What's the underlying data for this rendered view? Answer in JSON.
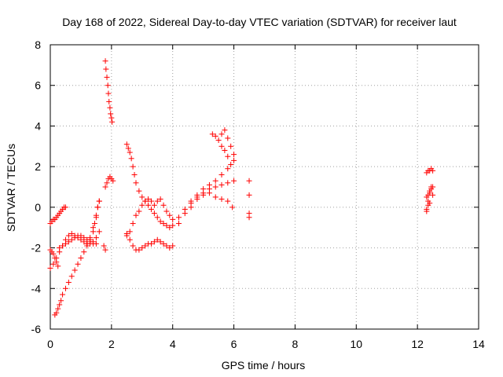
{
  "chart_data": {
    "type": "scatter",
    "title": "Day 168 of 2022, Sidereal Day-to-day VTEC variation (SDTVAR) for receiver laut",
    "xlabel": "GPS time / hours",
    "ylabel": "SDTVAR / TECUs",
    "xlim": [
      0,
      14
    ],
    "ylim": [
      -6,
      8
    ],
    "xticks": [
      "0",
      "2",
      "4",
      "6",
      "8",
      "10",
      "12",
      "14"
    ],
    "yticks": [
      "-6",
      "-4",
      "-2",
      "0",
      "2",
      "4",
      "6",
      "8"
    ],
    "grid": true,
    "marker": "+",
    "color": "#ff0000",
    "series": [
      {
        "name": "SDTVAR",
        "x": [
          0.0,
          0.05,
          0.1,
          0.15,
          0.2,
          0.25,
          0.3,
          0.35,
          0.4,
          0.45,
          0.5,
          0.0,
          0.05,
          0.1,
          0.15,
          0.2,
          0.25,
          0.15,
          0.2,
          0.25,
          0.3,
          0.35,
          0.4,
          0.5,
          0.6,
          0.7,
          0.8,
          0.9,
          1.0,
          1.1,
          1.2,
          1.3,
          1.4,
          1.45,
          1.5,
          1.55,
          1.6,
          0.0,
          0.1,
          0.2,
          0.3,
          0.4,
          0.5,
          0.6,
          0.7,
          0.8,
          0.9,
          1.0,
          1.1,
          1.2,
          1.3,
          1.4,
          1.5,
          1.6,
          0.3,
          0.4,
          0.5,
          0.6,
          0.7,
          0.8,
          0.9,
          1.0,
          1.1,
          1.2,
          1.3,
          1.4,
          1.5,
          1.2,
          1.3,
          1.4,
          1.5,
          1.55,
          1.6,
          1.8,
          1.82,
          1.85,
          1.88,
          1.9,
          1.92,
          1.95,
          1.97,
          2.0,
          2.02,
          1.8,
          1.85,
          1.9,
          1.95,
          2.0,
          2.05,
          1.75,
          1.8,
          2.5,
          2.55,
          2.6,
          2.65,
          2.7,
          2.75,
          2.8,
          2.9,
          3.0,
          3.1,
          3.2,
          3.3,
          3.4,
          3.5,
          3.6,
          3.7,
          3.8,
          3.9,
          2.5,
          2.6,
          2.7,
          2.8,
          2.9,
          3.0,
          3.1,
          3.2,
          3.3,
          3.4,
          3.5,
          3.6,
          3.7,
          3.8,
          3.9,
          4.0,
          2.5,
          2.6,
          2.7,
          2.8,
          2.9,
          3.0,
          3.1,
          3.2,
          3.3,
          3.4,
          3.5,
          3.6,
          3.7,
          3.8,
          3.9,
          4.0,
          4.0,
          4.2,
          4.4,
          4.6,
          4.8,
          5.0,
          5.2,
          5.4,
          5.6,
          5.8,
          6.0,
          4.2,
          4.4,
          4.6,
          4.8,
          5.0,
          5.2,
          5.4,
          5.6,
          5.8,
          6.0,
          4.6,
          4.8,
          5.0,
          5.2,
          5.4,
          5.6,
          5.8,
          5.95,
          5.3,
          5.4,
          5.5,
          5.6,
          5.7,
          5.8,
          5.9,
          6.0,
          5.6,
          5.7,
          5.8,
          5.9,
          6.5,
          6.5,
          6.5,
          6.5,
          12.3,
          12.35,
          12.4,
          12.45,
          12.5,
          12.3,
          12.35,
          12.4,
          12.45,
          12.5,
          12.3,
          12.35,
          12.4,
          12.45,
          12.5,
          12.3,
          12.35,
          12.4
        ],
        "y": [
          -0.8,
          -0.7,
          -0.6,
          -0.6,
          -0.5,
          -0.4,
          -0.3,
          -0.2,
          -0.1,
          0.0,
          0.0,
          -2.1,
          -2.2,
          -2.3,
          -2.5,
          -2.7,
          -2.9,
          -5.3,
          -5.2,
          -5.0,
          -4.8,
          -4.6,
          -4.3,
          -4.0,
          -3.7,
          -3.4,
          -3.1,
          -2.8,
          -2.5,
          -2.2,
          -1.9,
          -1.6,
          -1.2,
          -0.8,
          -0.4,
          0.0,
          0.3,
          -3.0,
          -2.8,
          -2.5,
          -2.2,
          -1.9,
          -1.6,
          -1.4,
          -1.3,
          -1.4,
          -1.5,
          -1.6,
          -1.7,
          -1.8,
          -1.8,
          -1.7,
          -1.5,
          -1.2,
          -2.0,
          -1.9,
          -1.8,
          -1.7,
          -1.6,
          -1.5,
          -1.4,
          -1.4,
          -1.5,
          -1.6,
          -1.7,
          -1.8,
          -1.8,
          -1.8,
          -1.5,
          -1.0,
          -0.5,
          0.0,
          0.3,
          7.2,
          6.8,
          6.4,
          6.0,
          5.6,
          5.2,
          4.9,
          4.6,
          4.4,
          4.2,
          1.0,
          1.2,
          1.4,
          1.5,
          1.4,
          1.3,
          -1.9,
          -2.1,
          3.1,
          2.9,
          2.7,
          2.4,
          2.0,
          1.6,
          1.2,
          0.8,
          0.5,
          0.3,
          0.1,
          -0.1,
          -0.3,
          -0.5,
          -0.7,
          -0.8,
          -0.9,
          -1.0,
          -1.3,
          -1.6,
          -1.9,
          -2.1,
          -2.1,
          -2.0,
          -1.9,
          -1.8,
          -1.8,
          -1.7,
          -1.6,
          -1.7,
          -1.8,
          -1.9,
          -2.0,
          -1.9,
          -1.4,
          -1.2,
          -0.8,
          -0.4,
          -0.2,
          0.1,
          0.3,
          0.4,
          0.3,
          0.1,
          0.3,
          0.4,
          0.1,
          -0.2,
          -0.4,
          -0.6,
          -0.9,
          -0.5,
          -0.1,
          0.3,
          0.5,
          0.7,
          0.9,
          1.0,
          1.1,
          1.2,
          1.3,
          -0.8,
          -0.3,
          0.2,
          0.6,
          0.9,
          1.1,
          1.3,
          1.6,
          1.9,
          2.3,
          0.0,
          0.4,
          0.6,
          0.7,
          0.5,
          0.4,
          0.3,
          0.0,
          3.6,
          3.5,
          3.3,
          3.6,
          3.8,
          3.4,
          3.0,
          2.6,
          3.0,
          2.8,
          2.5,
          2.1,
          1.3,
          0.6,
          -0.3,
          -0.5,
          -0.2,
          0.3,
          0.8,
          1.0,
          0.6,
          1.7,
          1.8,
          1.8,
          1.9,
          1.8,
          0.5,
          0.6,
          0.7,
          0.9,
          1.0,
          -0.1,
          0.1,
          0.2
        ]
      }
    ]
  }
}
